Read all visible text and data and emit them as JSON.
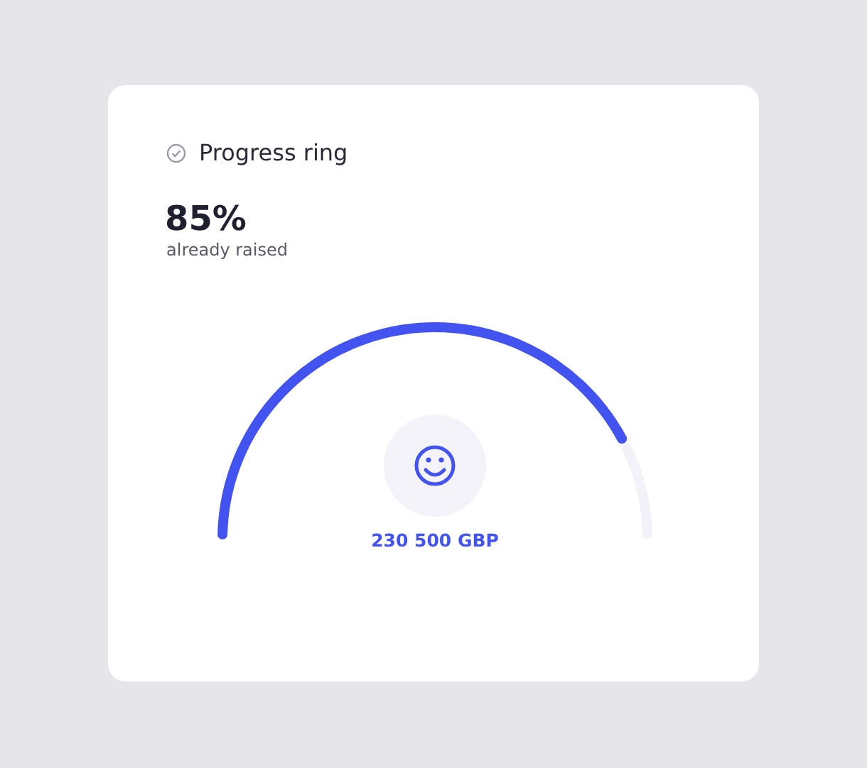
{
  "chart_data": {
    "type": "donut",
    "title": "Progress ring",
    "categories": [
      null,
      null
    ],
    "values": [
      85,
      15
    ],
    "colors": [
      "#4353f0",
      "#f2f2f8"
    ],
    "annotations": [
      "85%",
      "already raised",
      "230 500 GBP"
    ]
  }
}
